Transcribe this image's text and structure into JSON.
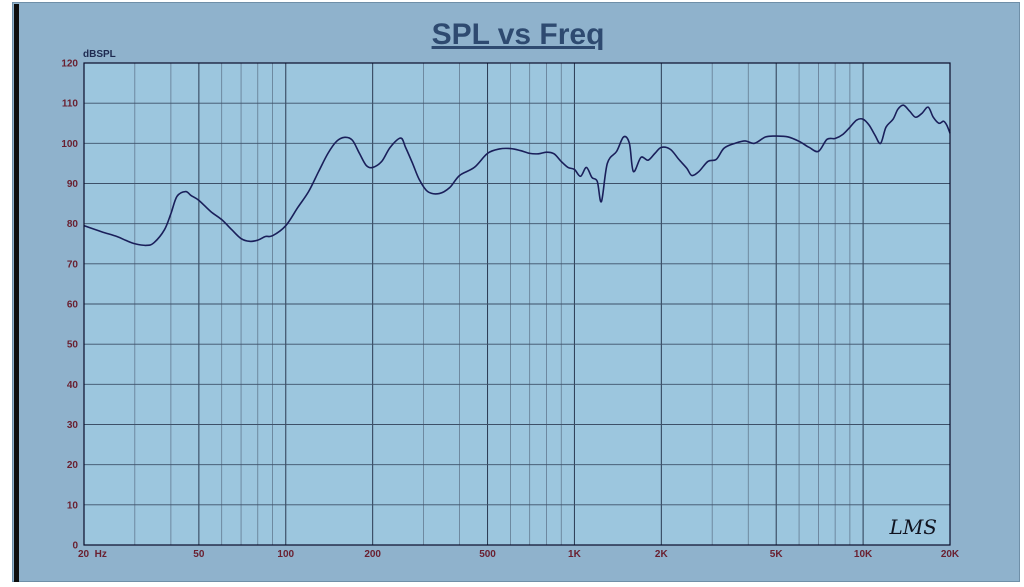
{
  "chart_data": {
    "type": "line",
    "title": "SPL vs Freq",
    "ylabel": "dBSPL",
    "xlabel": "",
    "x_scale": "log",
    "xlim": [
      20,
      20000
    ],
    "ylim": [
      0,
      120
    ],
    "grid": true,
    "y_ticks": [
      0,
      10,
      20,
      30,
      40,
      50,
      60,
      70,
      80,
      90,
      100,
      110,
      120
    ],
    "x_ticks": [
      {
        "value": 20,
        "label": "20  Hz"
      },
      {
        "value": 50,
        "label": "50"
      },
      {
        "value": 100,
        "label": "100"
      },
      {
        "value": 200,
        "label": "200"
      },
      {
        "value": 500,
        "label": "500"
      },
      {
        "value": 1000,
        "label": "1K"
      },
      {
        "value": 2000,
        "label": "2K"
      },
      {
        "value": 5000,
        "label": "5K"
      },
      {
        "value": 10000,
        "label": "10K"
      },
      {
        "value": 20000,
        "label": "20K"
      }
    ],
    "series": [
      {
        "color": "#1a1f5a",
        "points": [
          [
            20,
            79.5
          ],
          [
            23,
            78
          ],
          [
            26,
            76.8
          ],
          [
            28,
            75.8
          ],
          [
            30,
            75
          ],
          [
            33,
            74.6
          ],
          [
            35,
            75.3
          ],
          [
            38,
            78.5
          ],
          [
            40,
            82.5
          ],
          [
            42,
            86.8
          ],
          [
            45,
            88
          ],
          [
            47,
            87
          ],
          [
            50,
            85.8
          ],
          [
            55,
            83
          ],
          [
            60,
            81
          ],
          [
            65,
            78.5
          ],
          [
            70,
            76.3
          ],
          [
            75,
            75.6
          ],
          [
            80,
            75.9
          ],
          [
            85,
            76.8
          ],
          [
            90,
            77
          ],
          [
            100,
            79.5
          ],
          [
            110,
            84
          ],
          [
            120,
            88
          ],
          [
            130,
            93
          ],
          [
            140,
            97.5
          ],
          [
            150,
            100.5
          ],
          [
            160,
            101.5
          ],
          [
            170,
            100.8
          ],
          [
            180,
            97.5
          ],
          [
            190,
            94.5
          ],
          [
            200,
            94
          ],
          [
            215,
            95.5
          ],
          [
            230,
            99
          ],
          [
            250,
            101.3
          ],
          [
            260,
            99
          ],
          [
            275,
            95
          ],
          [
            290,
            91
          ],
          [
            310,
            88
          ],
          [
            340,
            87.5
          ],
          [
            370,
            89
          ],
          [
            400,
            92
          ],
          [
            450,
            94
          ],
          [
            500,
            97.5
          ],
          [
            550,
            98.6
          ],
          [
            600,
            98.7
          ],
          [
            650,
            98.2
          ],
          [
            700,
            97.5
          ],
          [
            750,
            97.4
          ],
          [
            800,
            97.8
          ],
          [
            850,
            97.4
          ],
          [
            900,
            95.5
          ],
          [
            950,
            94
          ],
          [
            1000,
            93.5
          ],
          [
            1050,
            91.8
          ],
          [
            1100,
            94
          ],
          [
            1150,
            91.5
          ],
          [
            1200,
            90.5
          ],
          [
            1240,
            85.5
          ],
          [
            1300,
            95
          ],
          [
            1400,
            98
          ],
          [
            1480,
            101.6
          ],
          [
            1550,
            100
          ],
          [
            1600,
            93
          ],
          [
            1700,
            96.5
          ],
          [
            1800,
            95.8
          ],
          [
            1900,
            97.5
          ],
          [
            2000,
            99
          ],
          [
            2150,
            98.5
          ],
          [
            2300,
            96
          ],
          [
            2450,
            93.8
          ],
          [
            2550,
            92
          ],
          [
            2700,
            93
          ],
          [
            2900,
            95.5
          ],
          [
            3100,
            96
          ],
          [
            3300,
            98.8
          ],
          [
            3600,
            100
          ],
          [
            3900,
            100.6
          ],
          [
            4200,
            100
          ],
          [
            4600,
            101.6
          ],
          [
            5000,
            101.8
          ],
          [
            5500,
            101.6
          ],
          [
            6000,
            100.5
          ],
          [
            6500,
            99
          ],
          [
            7000,
            98
          ],
          [
            7500,
            101
          ],
          [
            8000,
            101.2
          ],
          [
            8500,
            102.2
          ],
          [
            9000,
            104
          ],
          [
            9500,
            105.8
          ],
          [
            10000,
            106
          ],
          [
            10500,
            104.5
          ],
          [
            11000,
            102
          ],
          [
            11500,
            100
          ],
          [
            12000,
            104
          ],
          [
            12700,
            106
          ],
          [
            13200,
            108.5
          ],
          [
            13800,
            109.5
          ],
          [
            14500,
            108
          ],
          [
            15200,
            106.5
          ],
          [
            16000,
            107.5
          ],
          [
            16800,
            109
          ],
          [
            17500,
            106.5
          ],
          [
            18300,
            105
          ],
          [
            19000,
            105.5
          ],
          [
            19500,
            104.5
          ],
          [
            20000,
            102.5
          ]
        ]
      }
    ]
  },
  "logo_text": "LMS"
}
